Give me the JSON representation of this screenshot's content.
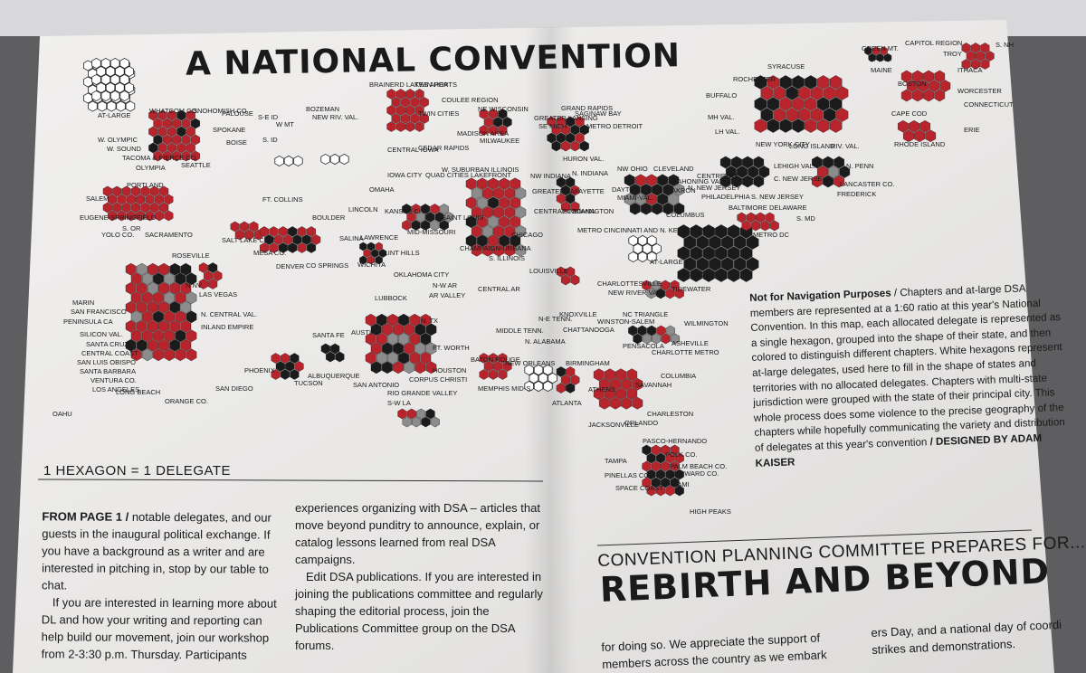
{
  "poster": {
    "title": "A NATIONAL CONVENTION",
    "scale_text": "1 HEXAGON = 1 DELEGATE",
    "note_bold": "Not for Navigation Purposes",
    "note_text": " / Chapters and at-large DSA members are represented at a 1:60 ratio at this year's National Convention. In this map, each allocated delegate is represented as a single hexagon, grouped into the shape of their state, and then colored to distinguish different chapters. White hexagons represent at-large delegates, used here to fill in the shape of states and territories with no allocated delegates. Chapters with multi-state jurisdiction were grouped with the state of their principal city. This whole process does some violence to the precise geography of the chapters while hopefully communicating the variety and distribution of delegates at this year's convention",
    "credit": " / DESIGNED BY ADAM KAISER"
  },
  "colors": {
    "paper": "#ecebea",
    "hex_red": "#b8242c",
    "hex_black": "#1b1b1b",
    "hex_gray": "#8c8c8c",
    "hex_white": "#ffffff"
  },
  "map_labels": [
    "AT-LARGE",
    "WHATCOM CO.",
    "SNOHOMISH CO.",
    "W. OLYMPIC",
    "W. SOUND",
    "TACOMA & PIERCE CO.",
    "OLYMPIA",
    "SEATTLE",
    "SPOKANE",
    "PALOUSE",
    "BOISE",
    "S. ID",
    "S-E ID",
    "W MT",
    "BOZEMAN",
    "NEW RIV. VAL.",
    "PORTLAND",
    "SALEM",
    "EUGENE-SPRINGFIELD",
    "S. OR",
    "YOLO CO.",
    "SACRAMENTO",
    "ROSEVILLE",
    "E. BAY",
    "MARIN",
    "SAN FRANCISCO",
    "PENINSULA CA",
    "SILICON VAL.",
    "SANTA CRUZ",
    "CENTRAL COAST",
    "SAN LUIS OBISPO",
    "SANTA BARBARA",
    "VENTURA CO.",
    "LOS ANGELES",
    "LONG BEACH",
    "ORANGE CO.",
    "SAN DIEGO",
    "INLAND EMPIRE",
    "N. CENTRAL VAL.",
    "N NV",
    "LAS VEGAS",
    "OAHU",
    "SALT LAKE CITY",
    "FT. COLLINS",
    "BOULDER",
    "MESA CO.",
    "DENVER",
    "CO SPRINGS",
    "PHOENIX",
    "TUCSON",
    "SANTA FE",
    "ALBUQUERQUE",
    "BRAINERD LAKES AREA",
    "TWIN PORTS",
    "TWIN CITIES",
    "COULEE REGION",
    "MADISON AREA",
    "NE WISCONSIN",
    "MILWAUKEE",
    "CENTRAL IOWA",
    "CEDAR RAPIDS",
    "IOWA CITY",
    "QUAD CITIES",
    "OMAHA",
    "LINCOLN",
    "KANSAS CITY",
    "SAINT LOUIS",
    "MID-MISSOURI",
    "SALINA",
    "LAWRENCE",
    "FLINT HILLS",
    "WICHITA",
    "OKLAHOMA CITY",
    "LUBBOCK",
    "N-W AR",
    "CENTRAL AR",
    "AR VALLEY",
    "W. SUBURBAN ILLINOIS",
    "LAKEFRONT",
    "CHICAGO",
    "CHAMPAIGN-URBANA",
    "S. ILLINOIS",
    "NW INDIANA",
    "GREATER LAFAYETTE",
    "CENTRAL INDIANA",
    "BLOOMINGTON",
    "N. INDIANA",
    "GRAND RAPIDS",
    "SAGINAW BAY",
    "GREATER LANSING",
    "SE MICH",
    "METRO DETROIT",
    "HURON VAL.",
    "NW OHIO",
    "CLEVELAND",
    "MAHONING VAL.",
    "AKRON",
    "DAYTON",
    "MIAMI-VAL.",
    "COLUMBUS",
    "METRO CINCINNATI AND N. KENTUCKY",
    "LOUISVILLE",
    "AT-LARGE",
    "CHARLOTTESVILLE",
    "RICHMOND",
    "NEW RIVER VAL.",
    "TIDEWATER",
    "N. TX",
    "AUSTIN",
    "FT. WORTH",
    "HOUSTON",
    "SAN ANTONIO",
    "CORPUS CHRISTI",
    "RIO GRANDE VALLEY",
    "S-W LA",
    "BATON ROUGE",
    "NEW ORLEANS",
    "MEMPHIS MID-S.",
    "MIDDLE TENN.",
    "N-E TENN.",
    "KNOXVILLE",
    "CHATTANOOGA",
    "N. ALABAMA",
    "BIRMINGHAM",
    "ATLANTA",
    "ATHENS",
    "SAVANNAH",
    "CHARLESTON",
    "COLUMBIA",
    "CHARLOTTE METRO",
    "WINSTON-SALEM",
    "NC TRIANGLE",
    "WILMINGTON",
    "ASHEVILLE",
    "PENSACOLA",
    "JACKSONVILLE",
    "ORLANDO",
    "PASCO-HERNANDO",
    "TAMPA",
    "PINELLAS CO.",
    "SPACE COAST",
    "POLK CO.",
    "PALM BEACH CO.",
    "BROWARD CO.",
    "MIAMI",
    "HIGH PEAKS",
    "GREEN MT.",
    "CAPITOL REGION",
    "U. VAL.",
    "TROY",
    "MAINE",
    "S. NH",
    "ITHACA",
    "SYRACUSE",
    "ROCHESTER",
    "BUFFALO",
    "MH VAL.",
    "LH VAL.",
    "NEW YORK CITY",
    "LONG ISLAND",
    "RIV. VAL.",
    "BOSTON",
    "WORCESTER",
    "CAPE COD",
    "CONNECTICUT",
    "RHODE ISLAND",
    "ERIE",
    "CENTRE CO.",
    "PITT",
    "N. NEW JERSEY",
    "N. PENN",
    "LEHIGH VAL.",
    "C. NEW JERSEY",
    "LANCASTER CO.",
    "PHILADELPHIA",
    "S. NEW JERSEY",
    "FREDERICK",
    "BALTIMORE",
    "DELAWARE",
    "S. MD",
    "METRO DC"
  ],
  "article": {
    "col1": [
      {
        "lead": "FROM PAGE 1 /",
        "text": " notable delegates, and our guests in the inaugural political exchange. If you have a background as a writer and are interested in pitching in, stop by our table to chat."
      },
      {
        "lead": "",
        "text": "If you are interested in learning more about DL and how your writing and reporting can help build our movement, join our workshop from 2-3:30 p.m. Thursday. Participants"
      }
    ],
    "col2": [
      {
        "text": "experiences organizing with DSA – articles that move beyond punditry to announce, explain, or catalog lessons learned from real DSA campaigns."
      },
      {
        "text": "Edit DSA publications. If you are interested in joining the publications committee and regularly shaping the editorial process, join the Publications Committee group on the DSA forums."
      }
    ],
    "kicker": "CONVENTION PLANNING COMMITTEE PREPARES FOR...",
    "headline": "REBIRTH AND BEYOND",
    "col3": "for doing so. We appreciate the support of members across the country as we embark",
    "col4": "ers Day, and a national day of coordi strikes and demonstrations."
  }
}
